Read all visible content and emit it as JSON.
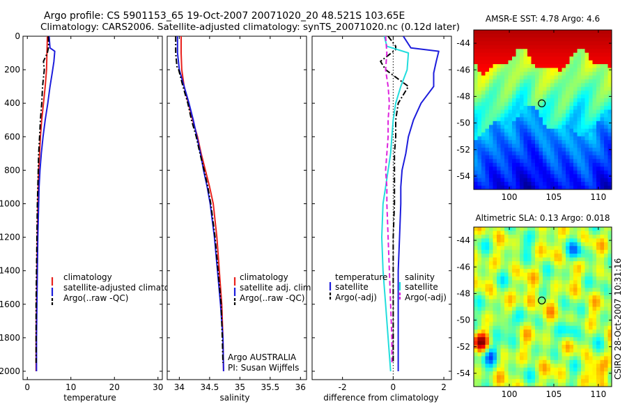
{
  "titles": {
    "line1": "Argo profile: CS 5901153_65 19-Oct-2007 20071020_20 48.521S 103.65E",
    "line2": "Climatology: CARS2006. Satellite-adjusted climatology: synTS_20071020.nc (0.12d later)"
  },
  "credit": "CSIRO 28-Oct-2007 10:31:16",
  "colors": {
    "climatology": "#e8201c",
    "satellite": "#1c1cdc",
    "argo": "#000000",
    "satellite_salinity": "#22dddd",
    "argo_salinity": "#dd22dd"
  },
  "chart_data": [
    {
      "type": "line",
      "xlabel": "temperature",
      "xlim": [
        -1,
        31
      ],
      "xticks": [
        0,
        10,
        20,
        30
      ],
      "ylim": [
        0,
        2050
      ],
      "yticks": [
        0,
        200,
        400,
        600,
        800,
        1000,
        1200,
        1400,
        1600,
        1800,
        2000
      ],
      "y_reversed": true,
      "legend": [
        "climatology",
        "satellite-adjusted climatology",
        "Argo(..raw -QC)"
      ],
      "series": [
        {
          "name": "climatology",
          "style": "solid",
          "color": "#e8201c",
          "points": [
            [
              4.6,
              0
            ],
            [
              4.5,
              100
            ],
            [
              4.4,
              200
            ],
            [
              4.1,
              300
            ],
            [
              3.7,
              400
            ],
            [
              3.3,
              500
            ],
            [
              3.0,
              600
            ],
            [
              2.8,
              700
            ],
            [
              2.6,
              800
            ],
            [
              2.5,
              900
            ],
            [
              2.4,
              1000
            ],
            [
              2.3,
              1200
            ],
            [
              2.2,
              1400
            ],
            [
              2.1,
              1600
            ],
            [
              2.0,
              1800
            ],
            [
              2.0,
              2000
            ]
          ]
        },
        {
          "name": "satellite-adjusted climatology",
          "style": "solid",
          "color": "#1c1cdc",
          "points": [
            [
              5.0,
              0
            ],
            [
              5.2,
              70
            ],
            [
              6.3,
              90
            ],
            [
              6.1,
              150
            ],
            [
              5.7,
              220
            ],
            [
              5.2,
              300
            ],
            [
              4.7,
              400
            ],
            [
              4.1,
              500
            ],
            [
              3.6,
              600
            ],
            [
              3.2,
              700
            ],
            [
              2.9,
              800
            ],
            [
              2.7,
              900
            ],
            [
              2.6,
              1000
            ],
            [
              2.4,
              1200
            ],
            [
              2.3,
              1400
            ],
            [
              2.2,
              1600
            ],
            [
              2.1,
              1800
            ],
            [
              2.1,
              2000
            ]
          ]
        },
        {
          "name": "Argo(..raw -QC)",
          "style": "dashdot",
          "color": "#000000",
          "points": [
            [
              4.8,
              0
            ],
            [
              4.9,
              60
            ],
            [
              4.6,
              100
            ],
            [
              3.7,
              150
            ],
            [
              3.9,
              200
            ],
            [
              3.5,
              300
            ],
            [
              3.3,
              400
            ],
            [
              3.0,
              500
            ],
            [
              2.8,
              600
            ],
            [
              2.6,
              700
            ],
            [
              2.5,
              800
            ],
            [
              2.4,
              900
            ],
            [
              2.3,
              1000
            ],
            [
              2.2,
              1200
            ],
            [
              2.1,
              1400
            ],
            [
              2.0,
              1600
            ],
            [
              2.0,
              1800
            ],
            [
              2.0,
              1950
            ]
          ]
        }
      ]
    },
    {
      "type": "line",
      "xlabel": "salinity",
      "xlim": [
        33.8,
        36.1
      ],
      "xticks": [
        34,
        34.5,
        35,
        35.5,
        36
      ],
      "ylim": [
        0,
        2050
      ],
      "y_reversed": true,
      "legend": [
        "climatology",
        "satellite adj. clim.",
        "Argo(..raw -QC)"
      ],
      "annotation": [
        "Argo AUSTRALIA",
        "PI: Susan Wijffels"
      ],
      "series": [
        {
          "name": "climatology",
          "style": "solid",
          "color": "#e8201c",
          "points": [
            [
              34.03,
              0
            ],
            [
              34.03,
              100
            ],
            [
              34.04,
              200
            ],
            [
              34.08,
              300
            ],
            [
              34.15,
              400
            ],
            [
              34.22,
              500
            ],
            [
              34.3,
              600
            ],
            [
              34.36,
              700
            ],
            [
              34.43,
              800
            ],
            [
              34.5,
              900
            ],
            [
              34.56,
              1000
            ],
            [
              34.62,
              1200
            ],
            [
              34.66,
              1400
            ],
            [
              34.7,
              1600
            ],
            [
              34.72,
              1800
            ],
            [
              34.73,
              2000
            ]
          ]
        },
        {
          "name": "satellite adj. clim.",
          "style": "solid",
          "color": "#1c1cdc",
          "points": [
            [
              33.97,
              0
            ],
            [
              33.97,
              100
            ],
            [
              34.0,
              200
            ],
            [
              34.08,
              300
            ],
            [
              34.16,
              400
            ],
            [
              34.23,
              500
            ],
            [
              34.29,
              600
            ],
            [
              34.35,
              700
            ],
            [
              34.4,
              800
            ],
            [
              34.46,
              900
            ],
            [
              34.51,
              1000
            ],
            [
              34.58,
              1200
            ],
            [
              34.63,
              1400
            ],
            [
              34.68,
              1600
            ],
            [
              34.72,
              1800
            ],
            [
              34.73,
              2000
            ]
          ]
        },
        {
          "name": "Argo(..raw -QC)",
          "style": "dashdot",
          "color": "#000000",
          "points": [
            [
              33.94,
              0
            ],
            [
              33.94,
              100
            ],
            [
              33.96,
              180
            ],
            [
              33.99,
              200
            ],
            [
              34.06,
              300
            ],
            [
              34.14,
              400
            ],
            [
              34.2,
              500
            ],
            [
              34.28,
              600
            ],
            [
              34.34,
              700
            ],
            [
              34.41,
              800
            ],
            [
              34.47,
              900
            ],
            [
              34.52,
              1000
            ],
            [
              34.59,
              1200
            ],
            [
              34.64,
              1400
            ],
            [
              34.69,
              1600
            ],
            [
              34.71,
              1800
            ],
            [
              34.72,
              1950
            ]
          ]
        }
      ]
    },
    {
      "type": "line",
      "xlabel": "difference from climatology",
      "xlim": [
        -3.2,
        2.3
      ],
      "xticks": [
        -2,
        0,
        2
      ],
      "ylim": [
        0,
        2050
      ],
      "y_reversed": true,
      "legend_groups": [
        {
          "header": "temperature",
          "items": [
            "satellite",
            "Argo(-adj)"
          ]
        },
        {
          "header": "salinity",
          "items": [
            "satellite",
            "Argo(-adj)"
          ]
        }
      ],
      "series": [
        {
          "name": "satellite",
          "group": "temperature",
          "style": "solid",
          "color": "#1c1cdc",
          "points": [
            [
              0.4,
              0
            ],
            [
              0.7,
              70
            ],
            [
              1.8,
              90
            ],
            [
              1.7,
              150
            ],
            [
              1.6,
              220
            ],
            [
              1.6,
              300
            ],
            [
              1.1,
              400
            ],
            [
              0.8,
              500
            ],
            [
              0.6,
              600
            ],
            [
              0.5,
              700
            ],
            [
              0.35,
              800
            ],
            [
              0.3,
              900
            ],
            [
              0.3,
              1000
            ],
            [
              0.25,
              1200
            ],
            [
              0.2,
              1400
            ],
            [
              0.2,
              1600
            ],
            [
              0.2,
              1800
            ],
            [
              0.2,
              2000
            ]
          ]
        },
        {
          "name": "Argo(-adj)",
          "group": "temperature",
          "style": "dashdot",
          "color": "#000000",
          "points": [
            [
              -0.2,
              0
            ],
            [
              0.1,
              60
            ],
            [
              0.1,
              80
            ],
            [
              -0.5,
              150
            ],
            [
              -0.3,
              200
            ],
            [
              0.6,
              300
            ],
            [
              0.2,
              400
            ],
            [
              0.1,
              500
            ],
            [
              0.1,
              600
            ],
            [
              0.05,
              700
            ],
            [
              0.05,
              800
            ],
            [
              0.05,
              900
            ],
            [
              0.05,
              1000
            ],
            [
              0.0,
              1200
            ],
            [
              0.0,
              1400
            ],
            [
              0.0,
              1600
            ],
            [
              0.0,
              1800
            ],
            [
              0.0,
              1950
            ]
          ]
        },
        {
          "name": "satellite",
          "group": "salinity",
          "style": "solid",
          "color": "#22dddd",
          "points": [
            [
              -0.35,
              0
            ],
            [
              -0.25,
              60
            ],
            [
              0.6,
              100
            ],
            [
              0.55,
              200
            ],
            [
              0.3,
              300
            ],
            [
              0.1,
              400
            ],
            [
              0.0,
              500
            ],
            [
              -0.05,
              600
            ],
            [
              -0.1,
              700
            ],
            [
              -0.2,
              800
            ],
            [
              -0.3,
              900
            ],
            [
              -0.4,
              1000
            ],
            [
              -0.45,
              1200
            ],
            [
              -0.4,
              1400
            ],
            [
              -0.3,
              1600
            ],
            [
              -0.2,
              1800
            ],
            [
              -0.1,
              2000
            ]
          ]
        },
        {
          "name": "Argo(-adj)",
          "group": "salinity",
          "style": "dashed",
          "color": "#dd22dd",
          "points": [
            [
              -0.3,
              0
            ],
            [
              -0.25,
              100
            ],
            [
              -0.3,
              200
            ],
            [
              -0.2,
              300
            ],
            [
              -0.15,
              400
            ],
            [
              -0.2,
              500
            ],
            [
              -0.2,
              600
            ],
            [
              -0.25,
              700
            ],
            [
              -0.3,
              800
            ],
            [
              -0.25,
              900
            ],
            [
              -0.25,
              1000
            ],
            [
              -0.2,
              1200
            ],
            [
              -0.15,
              1400
            ],
            [
              -0.1,
              1600
            ],
            [
              -0.05,
              1800
            ],
            [
              -0.05,
              1950
            ]
          ]
        }
      ]
    },
    {
      "type": "heatmap",
      "title": "AMSR-E SST: 4.78 Argo: 4.6",
      "xlim": [
        96,
        111.5
      ],
      "xticks": [
        100,
        105,
        110
      ],
      "ylim": [
        -55,
        -43
      ],
      "yticks": [
        -44,
        -46,
        -48,
        -50,
        -52,
        -54
      ],
      "argo_position": [
        103.65,
        -48.521
      ],
      "colormap": "jet"
    },
    {
      "type": "heatmap",
      "title": "Altimetric SLA: 0.13 Argo: 0.018",
      "xlim": [
        96,
        111.5
      ],
      "xticks": [
        100,
        105,
        110
      ],
      "ylim": [
        -55,
        -43
      ],
      "yticks": [
        -44,
        -46,
        -48,
        -50,
        -52,
        -54
      ],
      "argo_position": [
        103.65,
        -48.521
      ],
      "colormap": "jet"
    }
  ]
}
